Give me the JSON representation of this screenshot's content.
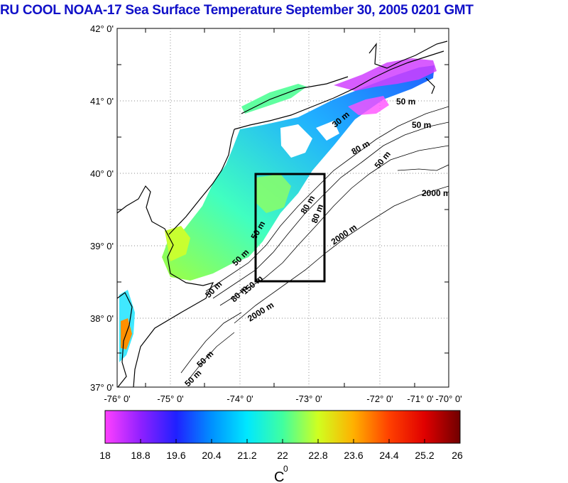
{
  "title": "RU COOL  NOAA-17 Sea Surface Temperature September 30, 2005 0201 GMT",
  "lat_ticks": [
    "42° 0'",
    "41° 0'",
    "40° 0'",
    "39° 0'",
    "38° 0'",
    "37° 0'"
  ],
  "lon_ticks": [
    "-76° 0'",
    "-75° 0'",
    "-74° 0'",
    "-73° 0'",
    "-72° 0'",
    "-71° 0'",
    "-70° 0'"
  ],
  "contour_labels": [
    {
      "text": "50 m"
    },
    {
      "text": "50 m"
    },
    {
      "text": "2000 m"
    },
    {
      "text": "2000 m"
    },
    {
      "text": "2000 m"
    },
    {
      "text": "80 m"
    },
    {
      "text": "50 m"
    },
    {
      "text": "50 m"
    },
    {
      "text": "50 m"
    },
    {
      "text": "30 m"
    },
    {
      "text": "50 m"
    },
    {
      "text": "80 m"
    },
    {
      "text": "50 m"
    },
    {
      "text": "50 m"
    },
    {
      "text": "150 m"
    },
    {
      "text": "80 m"
    },
    {
      "text": "80 m"
    }
  ],
  "colorbar": {
    "ticks": [
      "18",
      "18.8",
      "19.6",
      "20.4",
      "21.2",
      "22",
      "22.8",
      "23.6",
      "24.4",
      "25.2",
      "26"
    ],
    "unit": "C",
    "unit_sup": "0"
  }
}
